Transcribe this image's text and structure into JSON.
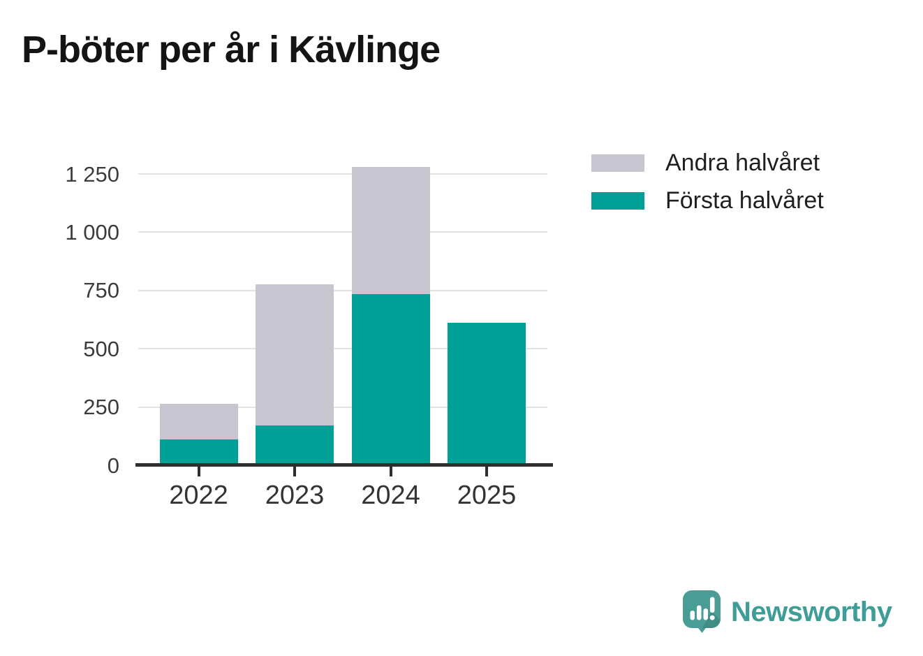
{
  "title": "P-böter per år i Kävlinge",
  "colors": {
    "first_half_teal": "#00A096",
    "second_half_gray": "#C7C5CF",
    "gridline": "#E2E2E4",
    "axis": "#2E2E2E",
    "axis_label": "#3C3C3C",
    "title_text": "#141414",
    "legend_text": "#1F1F1F",
    "logo_bubble": "#4A9C96",
    "logo_wordmark": "#3E9D97"
  },
  "legend": {
    "items": [
      {
        "label": "Andra halvåret",
        "color": "#C7C5CF"
      },
      {
        "label": "Första halvåret",
        "color": "#00A096"
      }
    ]
  },
  "chart_data": {
    "type": "bar",
    "stacked": true,
    "title": "P-böter per år i Kävlinge",
    "xlabel": "",
    "ylabel": "",
    "categories": [
      "2022",
      "2023",
      "2024",
      "2025"
    ],
    "series": [
      {
        "name": "Första halvåret",
        "color": "#00A096",
        "values": [
          110,
          170,
          735,
          612
        ]
      },
      {
        "name": "Andra halvåret",
        "color": "#C7C5CF",
        "values": [
          155,
          606,
          545,
          0
        ]
      }
    ],
    "totals": [
      265,
      776,
      1280,
      612
    ],
    "ylim": [
      0,
      1350
    ],
    "yticks": [
      0,
      250,
      500,
      750,
      1000,
      1250
    ],
    "ytick_labels": [
      "0",
      "250",
      "500",
      "750",
      "1 000",
      "1 250"
    ],
    "grid": "horizontal",
    "legend_position": "top-right"
  },
  "branding": {
    "wordmark": "Newsworthy",
    "logo_icon": "newsworthy-speech-bubble-bar-chart-icon"
  }
}
